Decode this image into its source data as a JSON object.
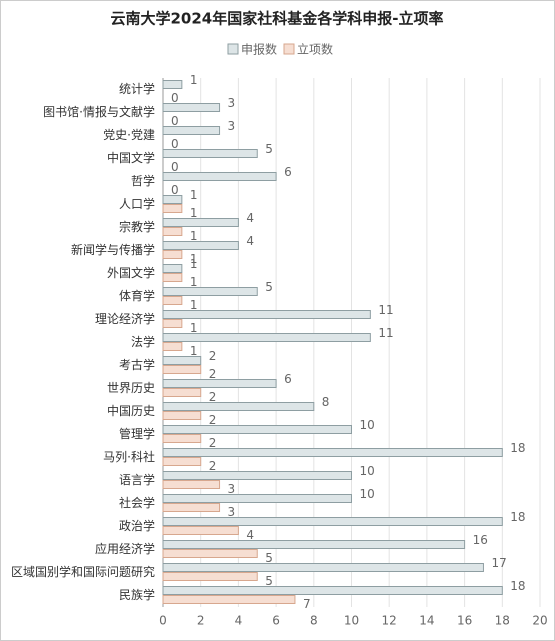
{
  "chart_data": {
    "type": "hbar",
    "title": "云南大学2024年国家社科基金各学科申报-立项率",
    "categories": [
      "统计学",
      "图书馆·情报与文献学",
      "党史·党建",
      "中国文学",
      "哲学",
      "人口学",
      "宗教学",
      "新闻学与传播学",
      "外国文学",
      "体育学",
      "理论经济学",
      "法学",
      "考古学",
      "世界历史",
      "中国历史",
      "管理学",
      "马列·科社",
      "语言学",
      "社会学",
      "政治学",
      "应用经济学",
      "区域国别学和国际问题研究",
      "民族学"
    ],
    "series": [
      {
        "name": "申报数",
        "color": "#dde5e7",
        "values": [
          1,
          3,
          3,
          5,
          6,
          1,
          4,
          4,
          1,
          5,
          11,
          11,
          2,
          6,
          8,
          10,
          18,
          10,
          10,
          18,
          16,
          17,
          18
        ]
      },
      {
        "name": "立项数",
        "color": "#f6ded2",
        "values": [
          0,
          0,
          0,
          0,
          0,
          1,
          1,
          1,
          1,
          1,
          1,
          1,
          2,
          2,
          2,
          2,
          2,
          3,
          3,
          4,
          5,
          5,
          7
        ]
      }
    ],
    "xlim": [
      0,
      20
    ],
    "xticks": [
      0,
      2,
      4,
      6,
      8,
      10,
      12,
      14,
      16,
      18,
      20
    ],
    "grid": true,
    "legend": "top"
  }
}
